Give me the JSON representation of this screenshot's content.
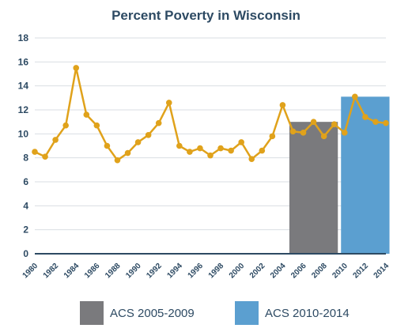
{
  "chart_data": {
    "type": "line",
    "title": "Percent Poverty in Wisconsin",
    "xlabel": "",
    "ylabel": "",
    "ylim": [
      0,
      18
    ],
    "yticks": [
      0,
      2,
      4,
      6,
      8,
      10,
      12,
      14,
      16,
      18
    ],
    "x_tick_labels": [
      "1980",
      "1982",
      "1984",
      "1986",
      "1988",
      "1990",
      "1992",
      "1994",
      "1996",
      "1998",
      "2000",
      "2002",
      "2004",
      "2006",
      "2008",
      "2010",
      "2012",
      "2014"
    ],
    "grid": true,
    "colors": {
      "line": "#e0a21b",
      "grid": "#d9dee3",
      "axis": "#2d4a63",
      "acs_2005_2009": "#7a7a7d",
      "acs_2010_2014": "#5b9fd0"
    },
    "series": [
      {
        "type": "line",
        "x": [
          1980,
          1981,
          1982,
          1983,
          1984,
          1985,
          1986,
          1987,
          1988,
          1989,
          1990,
          1991,
          1992,
          1993,
          1994,
          1995,
          1996,
          1997,
          1998,
          1999,
          2000,
          2001,
          2002,
          2003,
          2004,
          2005,
          2006,
          2007,
          2008,
          2009,
          2010,
          2011,
          2012,
          2013,
          2014
        ],
        "values": [
          8.5,
          8.1,
          9.5,
          10.7,
          15.5,
          11.6,
          10.7,
          9.0,
          7.8,
          8.4,
          9.3,
          9.9,
          10.9,
          12.6,
          9.0,
          8.5,
          8.8,
          8.2,
          8.8,
          8.6,
          9.3,
          7.9,
          8.6,
          9.8,
          12.4,
          10.2,
          10.1,
          11.0,
          9.8,
          10.8,
          10.1,
          13.1,
          11.4,
          11.0,
          10.9
        ]
      }
    ],
    "bars": [
      {
        "name": "ACS 2005-2009",
        "x_start": 2005,
        "x_end": 2009,
        "value": 11.0
      },
      {
        "name": "ACS 2010-2014",
        "x_start": 2010,
        "x_end": 2014,
        "value": 13.1
      }
    ],
    "legend": {
      "position": "bottom",
      "items": [
        "ACS 2005-2009",
        "ACS 2010-2014"
      ]
    }
  }
}
